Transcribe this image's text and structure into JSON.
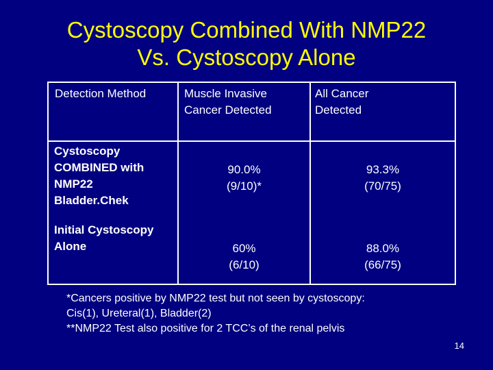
{
  "title": {
    "line1": "Cystoscopy Combined With NMP22",
    "line2": "Vs. Cystoscopy Alone"
  },
  "table": {
    "headers": {
      "method": "Detection Method",
      "muscle_line1": "Muscle Invasive",
      "muscle_line2": "Cancer Detected",
      "all_line1": "All Cancer",
      "all_line2": "Detected"
    },
    "rows": [
      {
        "method_lines": [
          "Cystoscopy",
          "COMBINED with",
          "NMP22",
          "Bladder.Chek"
        ],
        "muscle_pct": "90.0%",
        "muscle_frac": "(9/10)*",
        "all_pct": "93.3%",
        "all_frac": "(70/75)"
      },
      {
        "method_lines": [
          "Initial Cystoscopy",
          "Alone"
        ],
        "muscle_pct": "60%",
        "muscle_frac": "(6/10)",
        "all_pct": "88.0%",
        "all_frac": "(66/75)"
      }
    ]
  },
  "footnote": {
    "line1": "*Cancers positive by NMP22 test but not seen by cystoscopy:",
    "line2": "Cis(1), Ureteral(1), Bladder(2)",
    "line3": "**NMP22 Test also positive for 2 TCC’s of the renal pelvis"
  },
  "page_number": "14",
  "colors": {
    "background": "#000080",
    "title": "#ffff00",
    "text": "#ffffff"
  }
}
